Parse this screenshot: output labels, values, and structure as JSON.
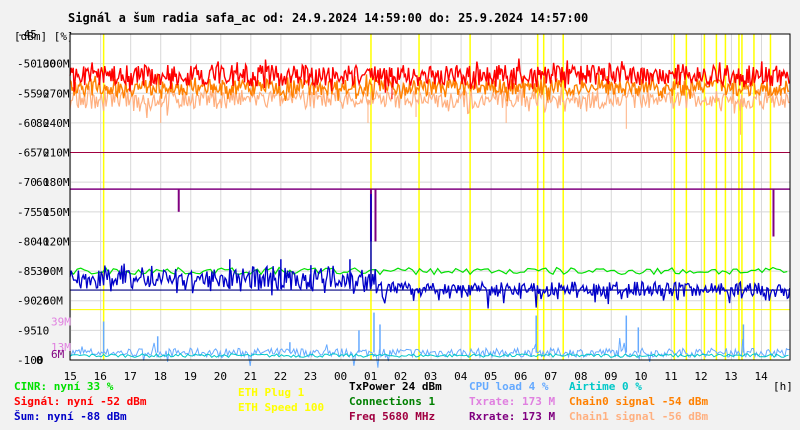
{
  "chart_data": {
    "type": "line",
    "title": "Signál a šum radia safa_ac od: 24.9.2024 14:59:00 do: 25.9.2024 14:57:00",
    "x_unit_label": "[h]",
    "y_unit_label": "[dBm] [%]",
    "x_ticks": [
      "15",
      "16",
      "17",
      "18",
      "19",
      "20",
      "21",
      "22",
      "23",
      "00",
      "01",
      "02",
      "03",
      "04",
      "05",
      "06",
      "07",
      "08",
      "09",
      "10",
      "11",
      "12",
      "13",
      "14"
    ],
    "x_range": [
      14.98,
      38.95
    ],
    "y_dbm_ticks": [
      "-45",
      "-50",
      "-55",
      "-60",
      "-65",
      "-70",
      "-75",
      "-80",
      "-85",
      "-90",
      "-95",
      "-100"
    ],
    "y_pct_ticks": [
      "100",
      "90",
      "80",
      "70",
      "60",
      "50",
      "40",
      "30",
      "20",
      "10",
      "0"
    ],
    "y_rate_ticks": [
      "300M",
      "270M",
      "240M",
      "210M",
      "180M",
      "150M",
      "120M",
      "90M",
      "60M"
    ],
    "y_rate_extra_ticks": [
      "39M",
      "13M",
      "6M"
    ],
    "y_dbm_range": [
      -100,
      -45
    ],
    "grid": true,
    "series": [
      {
        "name": "Signál",
        "color": "#ff0000",
        "level": -52,
        "noise": 1.8,
        "spikes": [
          [
            25.7,
            -56
          ]
        ]
      },
      {
        "name": "Chain0 signal",
        "color": "#ff8000",
        "level": -54,
        "noise": 1.4
      },
      {
        "name": "Chain1 signal",
        "color": "#ffb080",
        "level": -56,
        "noise": 1.6,
        "dips": [
          [
            18.0,
            -60
          ],
          [
            24.9,
            -60
          ],
          [
            26.5,
            -59
          ],
          [
            29.5,
            -60
          ],
          [
            33.5,
            -61
          ],
          [
            37.3,
            -62
          ]
        ]
      },
      {
        "name": "Šum",
        "color": "#0000c8",
        "level": -88,
        "noise": 1.2,
        "band_until": 25.2,
        "spikes": [
          [
            25.0,
            -72
          ],
          [
            22.0,
            -83
          ],
          [
            20.3,
            -83
          ],
          [
            24.3,
            -83
          ],
          [
            23.0,
            -84
          ]
        ]
      },
      {
        "name": "CINR",
        "color": "#00e000",
        "level": -85,
        "noise": 0.6
      },
      {
        "name": "CPU load",
        "color": "#66aaff",
        "level": 2.5,
        "noise": 1.5,
        "spikes": [
          [
            16.1,
            13
          ],
          [
            25.1,
            16
          ],
          [
            25.3,
            12
          ],
          [
            30.5,
            15
          ],
          [
            33.5,
            15
          ],
          [
            33.9,
            11
          ],
          [
            37.4,
            12
          ],
          [
            24.6,
            10
          ],
          [
            17.9,
            8
          ],
          [
            22.3,
            6
          ]
        ]
      },
      {
        "name": "Connections",
        "color": "#008000",
        "level": 1,
        "noise": 0.2
      },
      {
        "name": "ETH Plug",
        "color": "#ffff00",
        "level": 1,
        "noise": 0
      },
      {
        "name": "Freq",
        "color": "#a00040",
        "level": -65,
        "noise": 0
      },
      {
        "name": "Txrate",
        "color": "#800080",
        "level": 173,
        "noise": 0,
        "spikes": [
          [
            18.6,
            150
          ],
          [
            25.0,
            120
          ],
          [
            25.15,
            120
          ],
          [
            38.4,
            125
          ]
        ]
      }
    ],
    "vertical_markers_h": [
      16.1,
      25.0,
      26.6,
      28.3,
      30.55,
      30.75,
      31.4,
      35.1,
      35.5,
      36.1,
      36.5,
      36.8,
      37.25,
      37.35,
      37.75,
      38.3
    ],
    "markers_color": "#ffff00"
  },
  "legend": {
    "col1": [
      {
        "text": "CINR: nyní 33 %",
        "color": "#00e000"
      },
      {
        "text": "Signál: nyní -52 dBm",
        "color": "#ff0000"
      },
      {
        "text": "Šum: nyní -88 dBm",
        "color": "#0000c8"
      }
    ],
    "col2": [
      {
        "text": "ETH Plug 1",
        "color": "#ffff00"
      },
      {
        "text": "ETH Speed 100",
        "color": "#ffff00"
      }
    ],
    "col3": [
      {
        "text": "TxPower 24 dBm",
        "color": "#000000"
      },
      {
        "text": "Connections 1",
        "color": "#008000"
      },
      {
        "text": "Freq 5680 MHz",
        "color": "#a00040"
      }
    ],
    "col4": [
      {
        "text": "CPU load 4 %",
        "color": "#66aaff"
      },
      {
        "text": "Txrate: 173 M",
        "color": "#e080e0"
      },
      {
        "text": "Rxrate: 173 M",
        "color": "#800080"
      }
    ],
    "col5": [
      {
        "text": "Airtime 0 %",
        "color": "#00c8c8"
      },
      {
        "text": "Chain0 signal -54 dBm",
        "color": "#ff8000"
      },
      {
        "text": "Chain1 signal -56 dBm",
        "color": "#ffb080"
      }
    ]
  }
}
